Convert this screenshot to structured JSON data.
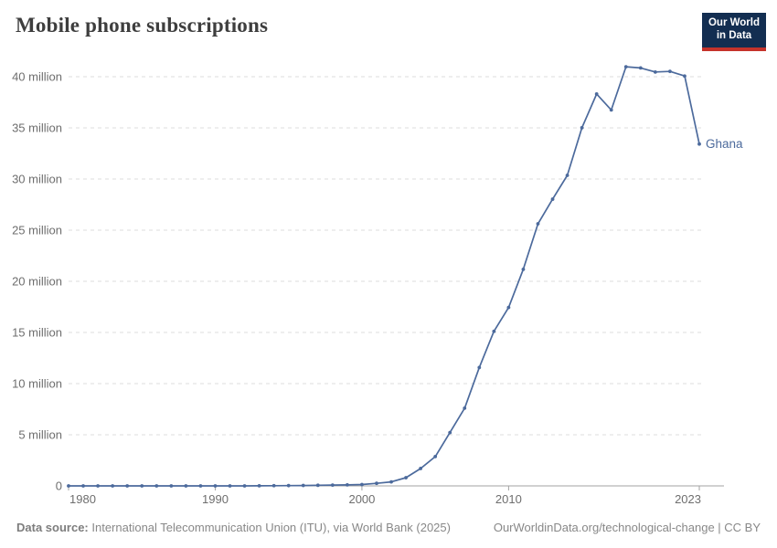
{
  "header": {
    "title": "Mobile phone subscriptions",
    "logo": {
      "line1": "Our World",
      "line2": "in Data"
    }
  },
  "chart_data": {
    "type": "line",
    "title": "Mobile phone subscriptions",
    "entity_label": "Ghana",
    "x": [
      1980,
      1981,
      1982,
      1983,
      1984,
      1985,
      1986,
      1987,
      1988,
      1989,
      1990,
      1991,
      1992,
      1993,
      1994,
      1995,
      1996,
      1997,
      1998,
      1999,
      2000,
      2001,
      2002,
      2003,
      2004,
      2005,
      2006,
      2007,
      2008,
      2009,
      2010,
      2011,
      2012,
      2013,
      2014,
      2015,
      2016,
      2017,
      2018,
      2019,
      2020,
      2021,
      2022,
      2023
    ],
    "series": [
      {
        "name": "Ghana",
        "values_millions": [
          0,
          0,
          0,
          0,
          0,
          0,
          0,
          0,
          0,
          0,
          0,
          0,
          0,
          0.01,
          0.02,
          0.03,
          0.04,
          0.06,
          0.08,
          0.1,
          0.13,
          0.25,
          0.39,
          0.8,
          1.7,
          2.87,
          5.21,
          7.6,
          11.57,
          15.11,
          17.44,
          21.17,
          25.62,
          28.03,
          30.36,
          35.01,
          38.31,
          36.75,
          40.97,
          40.86,
          40.46,
          40.52,
          40.07,
          33.42
        ]
      }
    ],
    "ylim": [
      0,
      40
    ],
    "yticks": [
      {
        "value": 0,
        "label": "0"
      },
      {
        "value": 5,
        "label": "5 million"
      },
      {
        "value": 10,
        "label": "10 million"
      },
      {
        "value": 15,
        "label": "15 million"
      },
      {
        "value": 20,
        "label": "20 million"
      },
      {
        "value": 25,
        "label": "25 million"
      },
      {
        "value": 30,
        "label": "30 million"
      },
      {
        "value": 35,
        "label": "35 million"
      },
      {
        "value": 40,
        "label": "40 million"
      }
    ],
    "xticks": [
      {
        "year": 1980,
        "label": "1980",
        "align": "start"
      },
      {
        "year": 1990,
        "label": "1990",
        "align": "middle"
      },
      {
        "year": 2000,
        "label": "2000",
        "align": "middle"
      },
      {
        "year": 2010,
        "label": "2010",
        "align": "middle"
      },
      {
        "year": 2023,
        "label": "2023",
        "align": "end"
      }
    ],
    "grid": "horizontal-dashed",
    "legend_position": "end-of-line",
    "colors": {
      "line": "#4C6A9C",
      "grid": "#dcdcdc",
      "axis": "#a3a3a3",
      "tick_text": "#6e6e6e"
    }
  },
  "footer": {
    "source_label": "Data source:",
    "source_text": "International Telecommunication Union (ITU), via World Bank (2025)",
    "right_text": "OurWorldinData.org/technological-change | CC BY"
  }
}
